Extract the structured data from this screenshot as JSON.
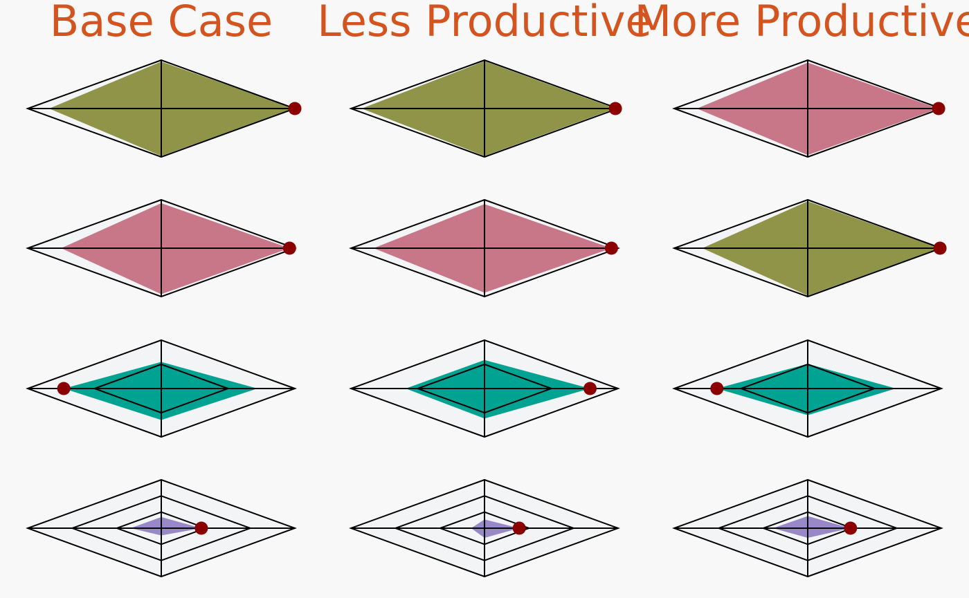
{
  "colors": {
    "background": "#f8f8f8",
    "title": "#d4541f",
    "grid_fill": "#f3f4f6",
    "grid_stroke": "#000000",
    "marker": "#8b0000"
  },
  "columns": [
    {
      "title": "Base Case"
    },
    {
      "title": "Less Productive"
    },
    {
      "title": "More Productive"
    }
  ],
  "chart_data": {
    "type": "radar",
    "axes": 4,
    "grid": true,
    "rows": [
      {
        "rings": 1,
        "color": "#8f9448",
        "color_by_column": [
          "#8f9448",
          "#8f9448",
          "#c77788"
        ],
        "cells": [
          {
            "values": [
              1.0,
              0.97,
              0.84,
              0.98
            ],
            "marker_axis": 0
          },
          {
            "values": [
              0.98,
              0.98,
              0.92,
              0.98
            ],
            "marker_axis": 0
          },
          {
            "values": [
              0.98,
              0.95,
              0.83,
              0.96
            ],
            "marker_axis": 0
          }
        ]
      },
      {
        "rings": 1,
        "color_by_column": [
          "#c77788",
          "#c77788",
          "#8f9448"
        ],
        "cells": [
          {
            "values": [
              0.96,
              0.93,
              0.75,
              0.95
            ],
            "marker_axis": 0
          },
          {
            "values": [
              0.95,
              0.91,
              0.83,
              0.92
            ],
            "marker_axis": 0
          },
          {
            "values": [
              0.99,
              0.97,
              0.79,
              0.98
            ],
            "marker_axis": 0
          }
        ]
      },
      {
        "rings": 2,
        "color_by_column": [
          "#00a392",
          "#00a392",
          "#00a392"
        ],
        "cells": [
          {
            "values": [
              0.72,
              0.55,
              0.73,
              0.65
            ],
            "marker_axis": 2
          },
          {
            "values": [
              0.79,
              0.59,
              0.59,
              0.62
            ],
            "marker_axis": 0
          },
          {
            "values": [
              0.66,
              0.51,
              0.68,
              0.55
            ],
            "marker_axis": 2
          }
        ]
      },
      {
        "rings": 3,
        "color_by_column": [
          "#9888c7",
          "#9888c7",
          "#9888c7"
        ],
        "cells": [
          {
            "values": [
              0.3,
              0.23,
              0.23,
              0.15
            ],
            "marker_axis": 0
          },
          {
            "values": [
              0.26,
              0.18,
              0.1,
              0.2
            ],
            "marker_axis": 0
          },
          {
            "values": [
              0.32,
              0.25,
              0.26,
              0.2
            ],
            "marker_axis": 0
          }
        ]
      }
    ]
  }
}
